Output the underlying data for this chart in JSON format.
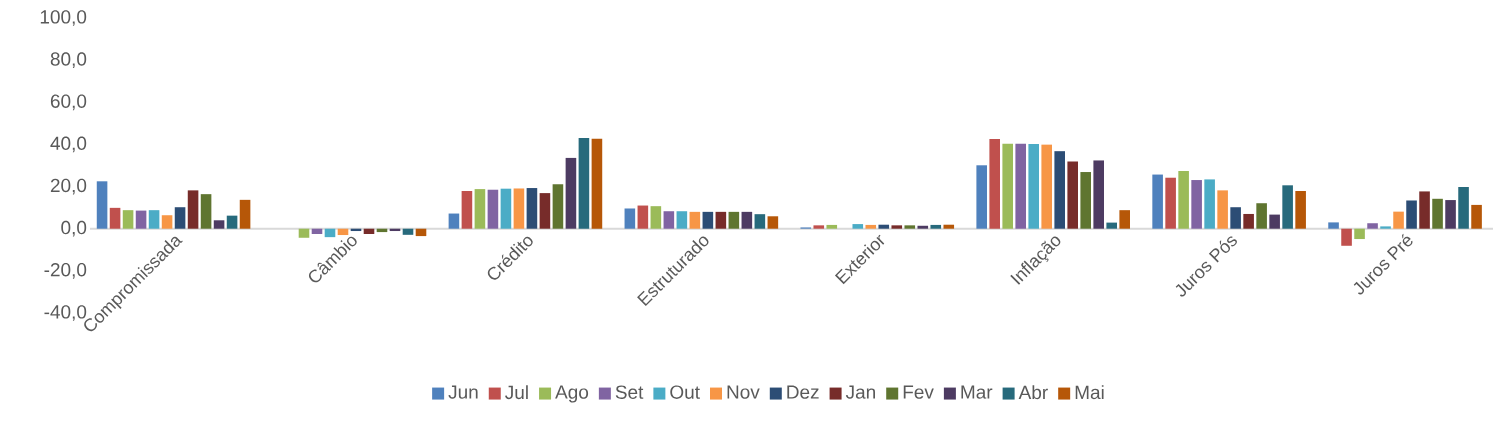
{
  "chart_data": {
    "type": "bar",
    "categories": [
      "Compromissada",
      "Câmbio",
      "Crédito",
      "Estruturado",
      "Exterior",
      "Inflação",
      "Juros Pós",
      "Juros Pré"
    ],
    "series": [
      {
        "name": "Jun",
        "color": "#4f81bd",
        "values": [
          22.5,
          0,
          7.2,
          9.6,
          0.6,
          30.1,
          25.7,
          3.0
        ]
      },
      {
        "name": "Jul",
        "color": "#c0504d",
        "values": [
          9.9,
          0,
          17.9,
          11.0,
          1.6,
          42.6,
          24.2,
          -8.1
        ]
      },
      {
        "name": "Ago",
        "color": "#9bbb59",
        "values": [
          8.8,
          -4.3,
          18.8,
          10.7,
          1.8,
          40.3,
          27.4,
          -4.9
        ]
      },
      {
        "name": "Set",
        "color": "#8064a2",
        "values": [
          8.6,
          -2.5,
          18.5,
          8.3,
          0,
          40.3,
          23.1,
          2.6
        ]
      },
      {
        "name": "Out",
        "color": "#4bacc6",
        "values": [
          8.8,
          -4.0,
          19.0,
          8.3,
          2.2,
          40.2,
          23.4,
          1.1
        ]
      },
      {
        "name": "Nov",
        "color": "#f79646",
        "values": [
          6.4,
          -3.0,
          19.1,
          8.0,
          1.8,
          39.9,
          18.2,
          8.1
        ]
      },
      {
        "name": "Dez",
        "color": "#2c4d75",
        "values": [
          10.2,
          -1.1,
          19.3,
          8.0,
          1.9,
          36.8,
          10.2,
          13.4
        ]
      },
      {
        "name": "Jan",
        "color": "#772c2a",
        "values": [
          18.2,
          -2.5,
          16.9,
          8.0,
          1.6,
          31.9,
          7.0,
          17.7
        ]
      },
      {
        "name": "Fev",
        "color": "#5f7530",
        "values": [
          16.4,
          -1.6,
          21.1,
          8.0,
          1.6,
          26.9,
          12.1,
          14.2
        ]
      },
      {
        "name": "Mar",
        "color": "#4d3b62",
        "values": [
          4.0,
          -1.1,
          33.6,
          8.0,
          1.4,
          32.4,
          6.7,
          13.6
        ]
      },
      {
        "name": "Abr",
        "color": "#276a7c",
        "values": [
          6.2,
          -2.9,
          43.1,
          6.9,
          1.8,
          2.9,
          20.6,
          19.8
        ]
      },
      {
        "name": "Mai",
        "color": "#b65708",
        "values": [
          13.7,
          -3.5,
          42.7,
          5.9,
          1.9,
          8.8,
          17.9,
          11.3
        ]
      }
    ],
    "ylim": [
      -40,
      100
    ],
    "yticks": [
      {
        "value": -40,
        "label": "-40,0"
      },
      {
        "value": -20,
        "label": "-20,0"
      },
      {
        "value": 0,
        "label": "0,0"
      },
      {
        "value": 20,
        "label": "20,0"
      },
      {
        "value": 40,
        "label": "40,0"
      },
      {
        "value": 60,
        "label": "60,0"
      },
      {
        "value": 80,
        "label": "80,0"
      },
      {
        "value": 100,
        "label": "100,0"
      }
    ],
    "legend": "bottom"
  }
}
